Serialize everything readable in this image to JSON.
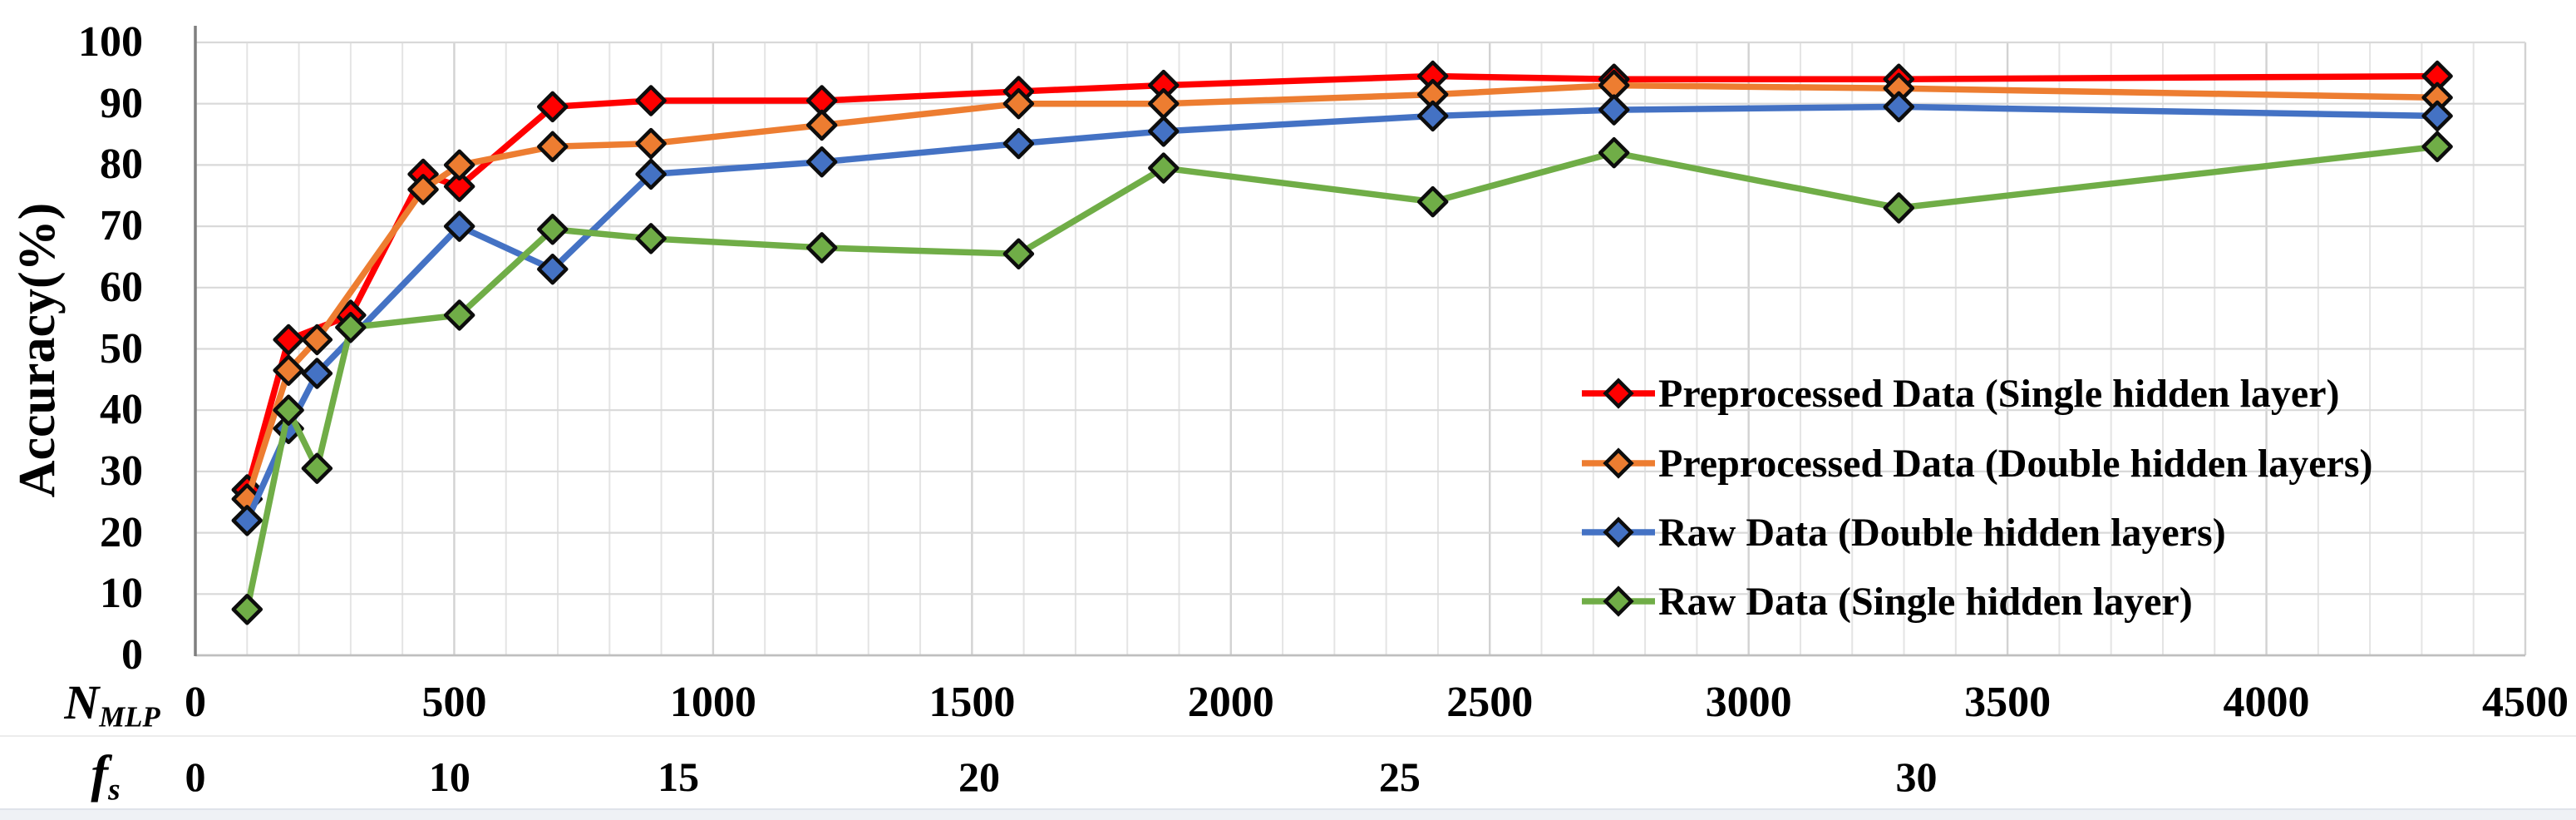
{
  "chart_data": {
    "type": "line",
    "title": "",
    "ylabel": "Accuracy(%)",
    "grid": true,
    "legend_position": "inside-right",
    "y_axis": {
      "min": 0,
      "max": 100,
      "tick_step": 10,
      "ticks": [
        {
          "label": "0",
          "value": 0
        },
        {
          "label": "10",
          "value": 10
        },
        {
          "label": "20",
          "value": 20
        },
        {
          "label": "30",
          "value": 30
        },
        {
          "label": "40",
          "value": 40
        },
        {
          "label": "50",
          "value": 50
        },
        {
          "label": "60",
          "value": 60
        },
        {
          "label": "70",
          "value": 70
        },
        {
          "label": "80",
          "value": 80
        },
        {
          "label": "90",
          "value": 90
        },
        {
          "label": "100",
          "value": 100
        }
      ]
    },
    "x_axis": {
      "symbol": "N",
      "subscript": "MLP",
      "min": 0,
      "max": 4500,
      "tick_step": 500,
      "ticks": [
        {
          "label": "0",
          "value": 0
        },
        {
          "label": "500",
          "value": 500
        },
        {
          "label": "1000",
          "value": 1000
        },
        {
          "label": "1500",
          "value": 1500
        },
        {
          "label": "2000",
          "value": 2000
        },
        {
          "label": "2500",
          "value": 2500
        },
        {
          "label": "3000",
          "value": 3000
        },
        {
          "label": "3500",
          "value": 3500
        },
        {
          "label": "4000",
          "value": 4000
        },
        {
          "label": "4500",
          "value": 4500
        }
      ]
    },
    "x_axis_secondary": {
      "symbol": "f",
      "subscript": "s",
      "ticks": [
        {
          "label": "0",
          "value": 0
        },
        {
          "label": "10",
          "value": 491
        },
        {
          "label": "15",
          "value": 933
        },
        {
          "label": "20",
          "value": 1514
        },
        {
          "label": "25",
          "value": 2326
        },
        {
          "label": "30",
          "value": 3324
        }
      ]
    },
    "series": [
      {
        "name": "Preprocessed Data (Single hidden layer)",
        "color": "#FF0000",
        "points": [
          [
            100,
            27
          ],
          [
            180,
            51.5
          ],
          [
            300,
            55.5
          ],
          [
            440,
            78.5
          ],
          [
            510,
            76.5
          ],
          [
            690,
            89.5
          ],
          [
            880,
            90.5
          ],
          [
            1210,
            90.5
          ],
          [
            1590,
            92
          ],
          [
            1870,
            93
          ],
          [
            2390,
            94.5
          ],
          [
            2740,
            94
          ],
          [
            3290,
            94
          ],
          [
            4330,
            94.5
          ]
        ]
      },
      {
        "name": "Preprocessed Data (Double hidden layers)",
        "color": "#ED7D31",
        "points": [
          [
            100,
            25.5
          ],
          [
            180,
            46.5
          ],
          [
            235,
            51.5
          ],
          [
            440,
            76
          ],
          [
            510,
            80
          ],
          [
            690,
            83
          ],
          [
            880,
            83.5
          ],
          [
            1210,
            86.5
          ],
          [
            1590,
            90
          ],
          [
            1870,
            90
          ],
          [
            2390,
            91.5
          ],
          [
            2740,
            93
          ],
          [
            3290,
            92.5
          ],
          [
            4330,
            91
          ]
        ]
      },
      {
        "name": "Raw Data (Double hidden layers)",
        "color": "#4472C4",
        "points": [
          [
            100,
            22
          ],
          [
            180,
            37
          ],
          [
            235,
            46
          ],
          [
            510,
            70
          ],
          [
            690,
            63
          ],
          [
            880,
            78.5
          ],
          [
            1210,
            80.5
          ],
          [
            1590,
            83.5
          ],
          [
            1870,
            85.5
          ],
          [
            2390,
            88
          ],
          [
            2740,
            89
          ],
          [
            3290,
            89.5
          ],
          [
            4330,
            88
          ]
        ]
      },
      {
        "name": "Raw Data (Single hidden layer)",
        "color": "#70AD47",
        "points": [
          [
            100,
            7.5
          ],
          [
            180,
            40
          ],
          [
            235,
            30.5
          ],
          [
            300,
            53.5
          ],
          [
            510,
            55.5
          ],
          [
            690,
            69.5
          ],
          [
            880,
            68
          ],
          [
            1210,
            66.5
          ],
          [
            1590,
            65.5
          ],
          [
            1870,
            79.5
          ],
          [
            2390,
            74
          ],
          [
            2740,
            82
          ],
          [
            3290,
            73
          ],
          [
            4330,
            83
          ]
        ]
      }
    ],
    "style_colors": {
      "grid_horizontal": "#d9d9d9",
      "grid_vertical_minor": "#e4e4e4",
      "grid_vertical_major": "#d2d2d2",
      "axis_spine": "#7f7f7f",
      "baseline": "#bfbfbf",
      "marker_border": "#0d0d0d"
    }
  }
}
